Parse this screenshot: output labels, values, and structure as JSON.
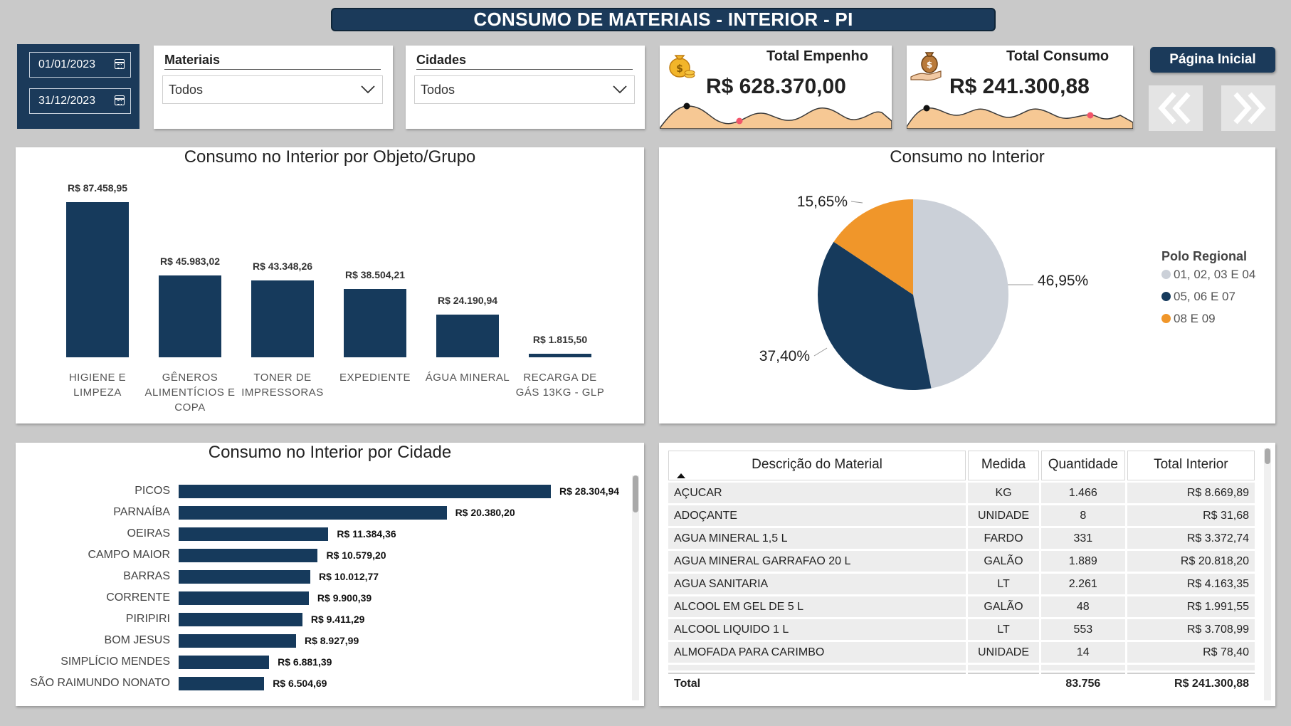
{
  "title": "CONSUMO DE MATERIAIS - INTERIOR - PI",
  "date_filter": {
    "start": "01/01/2023",
    "end": "31/12/2023"
  },
  "slicers": [
    {
      "label": "Materiais",
      "value": "Todos"
    },
    {
      "label": "Cidades",
      "value": "Todos"
    }
  ],
  "kpis": [
    {
      "title": "Total Empenho",
      "value": "R$ 628.370,00",
      "icon": "money-bag-icon"
    },
    {
      "title": "Total Consumo",
      "value": "R$ 241.300,88",
      "icon": "money-hand-icon"
    }
  ],
  "navigation": {
    "home_label": "Página Inicial",
    "prev_icon": "double-chevron-left-icon",
    "next_icon": "double-chevron-right-icon"
  },
  "colors": {
    "navy": "#1b3a5a",
    "bar": "#163a5c",
    "orange": "#f0962a",
    "light_gray": "#cbd0d8",
    "kpi_fill": "#f6c894"
  },
  "chart_data": [
    {
      "type": "bar",
      "title": "Consumo no Interior por Objeto/Grupo",
      "categories": [
        [
          "HIGIENE E",
          "LIMPEZA"
        ],
        [
          "GÊNEROS",
          "ALIMENTÍCIOS E",
          "COPA"
        ],
        [
          "TONER DE",
          "IMPRESSORAS"
        ],
        [
          "EXPEDIENTE"
        ],
        [
          "ÁGUA MINERAL"
        ],
        [
          "RECARGA DE",
          "GÁS 13KG - GLP"
        ]
      ],
      "values": [
        87458.95,
        45983.02,
        43348.26,
        38504.21,
        24190.94,
        1815.5
      ],
      "labels": [
        "R$ 87.458,95",
        "R$ 45.983,02",
        "R$ 43.348,26",
        "R$ 38.504,21",
        "R$ 24.190,94",
        "R$ 1.815,50"
      ],
      "ylim": [
        0,
        87458.95
      ]
    },
    {
      "type": "pie",
      "title": "Consumo no Interior",
      "legend_title": "Polo Regional",
      "slices": [
        {
          "name": "01, 02, 03 E 04",
          "value": 46.95,
          "label": "46,95%",
          "color": "#cbd0d8"
        },
        {
          "name": "05, 06 E 07",
          "value": 37.4,
          "label": "37,40%",
          "color": "#163a5c"
        },
        {
          "name": "08 E 09",
          "value": 15.65,
          "label": "15,65%",
          "color": "#f0962a"
        }
      ]
    },
    {
      "type": "bar",
      "orientation": "horizontal",
      "title": "Consumo no Interior por Cidade",
      "categories": [
        "PICOS",
        "PARNAÍBA",
        "OEIRAS",
        "CAMPO MAIOR",
        "BARRAS",
        "CORRENTE",
        "PIRIPIRI",
        "BOM JESUS",
        "SIMPLÍCIO MENDES",
        "SÃO RAIMUNDO NONATO"
      ],
      "values": [
        28304.94,
        20380.2,
        11384.36,
        10579.2,
        10012.77,
        9900.39,
        9411.29,
        8927.99,
        6881.39,
        6504.69
      ],
      "labels": [
        "R$ 28.304,94",
        "R$ 20.380,20",
        "R$ 11.384,36",
        "R$ 10.579,20",
        "R$ 10.012,77",
        "R$ 9.900,39",
        "R$ 9.411,29",
        "R$ 8.927,99",
        "R$ 6.881,39",
        "R$ 6.504,69"
      ],
      "xlim": [
        0,
        28304.94
      ]
    }
  ],
  "table": {
    "headers": [
      "Descrição do Material",
      "Medida",
      "Quantidade",
      "Total Interior"
    ],
    "sort_icon": "sort-ascending-icon",
    "rows": [
      [
        "AÇUCAR",
        "KG",
        "1.466",
        "R$ 8.669,89"
      ],
      [
        "ADOÇANTE",
        "UNIDADE",
        "8",
        "R$ 31,68"
      ],
      [
        "AGUA MINERAL 1,5 L",
        "FARDO",
        "331",
        "R$ 3.372,74"
      ],
      [
        "AGUA MINERAL GARRAFAO 20 L",
        "GALÃO",
        "1.889",
        "R$ 20.818,20"
      ],
      [
        "AGUA SANITARIA",
        "LT",
        "2.261",
        "R$ 4.163,35"
      ],
      [
        "ALCOOL EM GEL DE 5 L",
        "GALÃO",
        "48",
        "R$ 1.991,55"
      ],
      [
        "ALCOOL LIQUIDO 1 L",
        "LT",
        "553",
        "R$ 3.708,99"
      ],
      [
        "ALMOFADA PARA CARIMBO",
        "UNIDADE",
        "14",
        "R$ 78,40"
      ]
    ],
    "total": [
      "Total",
      "",
      "83.756",
      "R$ 241.300,88"
    ]
  }
}
